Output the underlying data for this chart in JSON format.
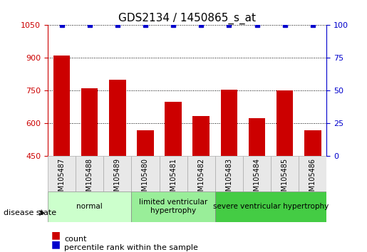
{
  "title": "GDS2134 / 1450865_s_at",
  "samples": [
    "GSM105487",
    "GSM105488",
    "GSM105489",
    "GSM105480",
    "GSM105481",
    "GSM105482",
    "GSM105483",
    "GSM105484",
    "GSM105485",
    "GSM105486"
  ],
  "counts": [
    910,
    760,
    800,
    570,
    700,
    635,
    755,
    625,
    750,
    570
  ],
  "percentiles": [
    100,
    100,
    100,
    100,
    100,
    100,
    100,
    100,
    100,
    100
  ],
  "bar_color": "#cc0000",
  "dot_color": "#0000cc",
  "ylim_left": [
    450,
    1050
  ],
  "ylim_right": [
    0,
    100
  ],
  "yticks_left": [
    450,
    600,
    750,
    900,
    1050
  ],
  "yticks_right": [
    0,
    25,
    50,
    75,
    100
  ],
  "groups": [
    {
      "label": "normal",
      "start": 0,
      "end": 3,
      "color": "#ccffcc"
    },
    {
      "label": "limited ventricular\nhypertrophy",
      "start": 3,
      "end": 6,
      "color": "#99ee99"
    },
    {
      "label": "severe ventricular hypertrophy",
      "start": 6,
      "end": 10,
      "color": "#44cc44"
    }
  ],
  "disease_state_label": "disease state",
  "legend_count_label": "count",
  "legend_pct_label": "percentile rank within the sample",
  "left_tick_color": "#cc0000",
  "right_tick_color": "#0000cc",
  "grid_color": "#000000",
  "background_color": "#ffffff"
}
